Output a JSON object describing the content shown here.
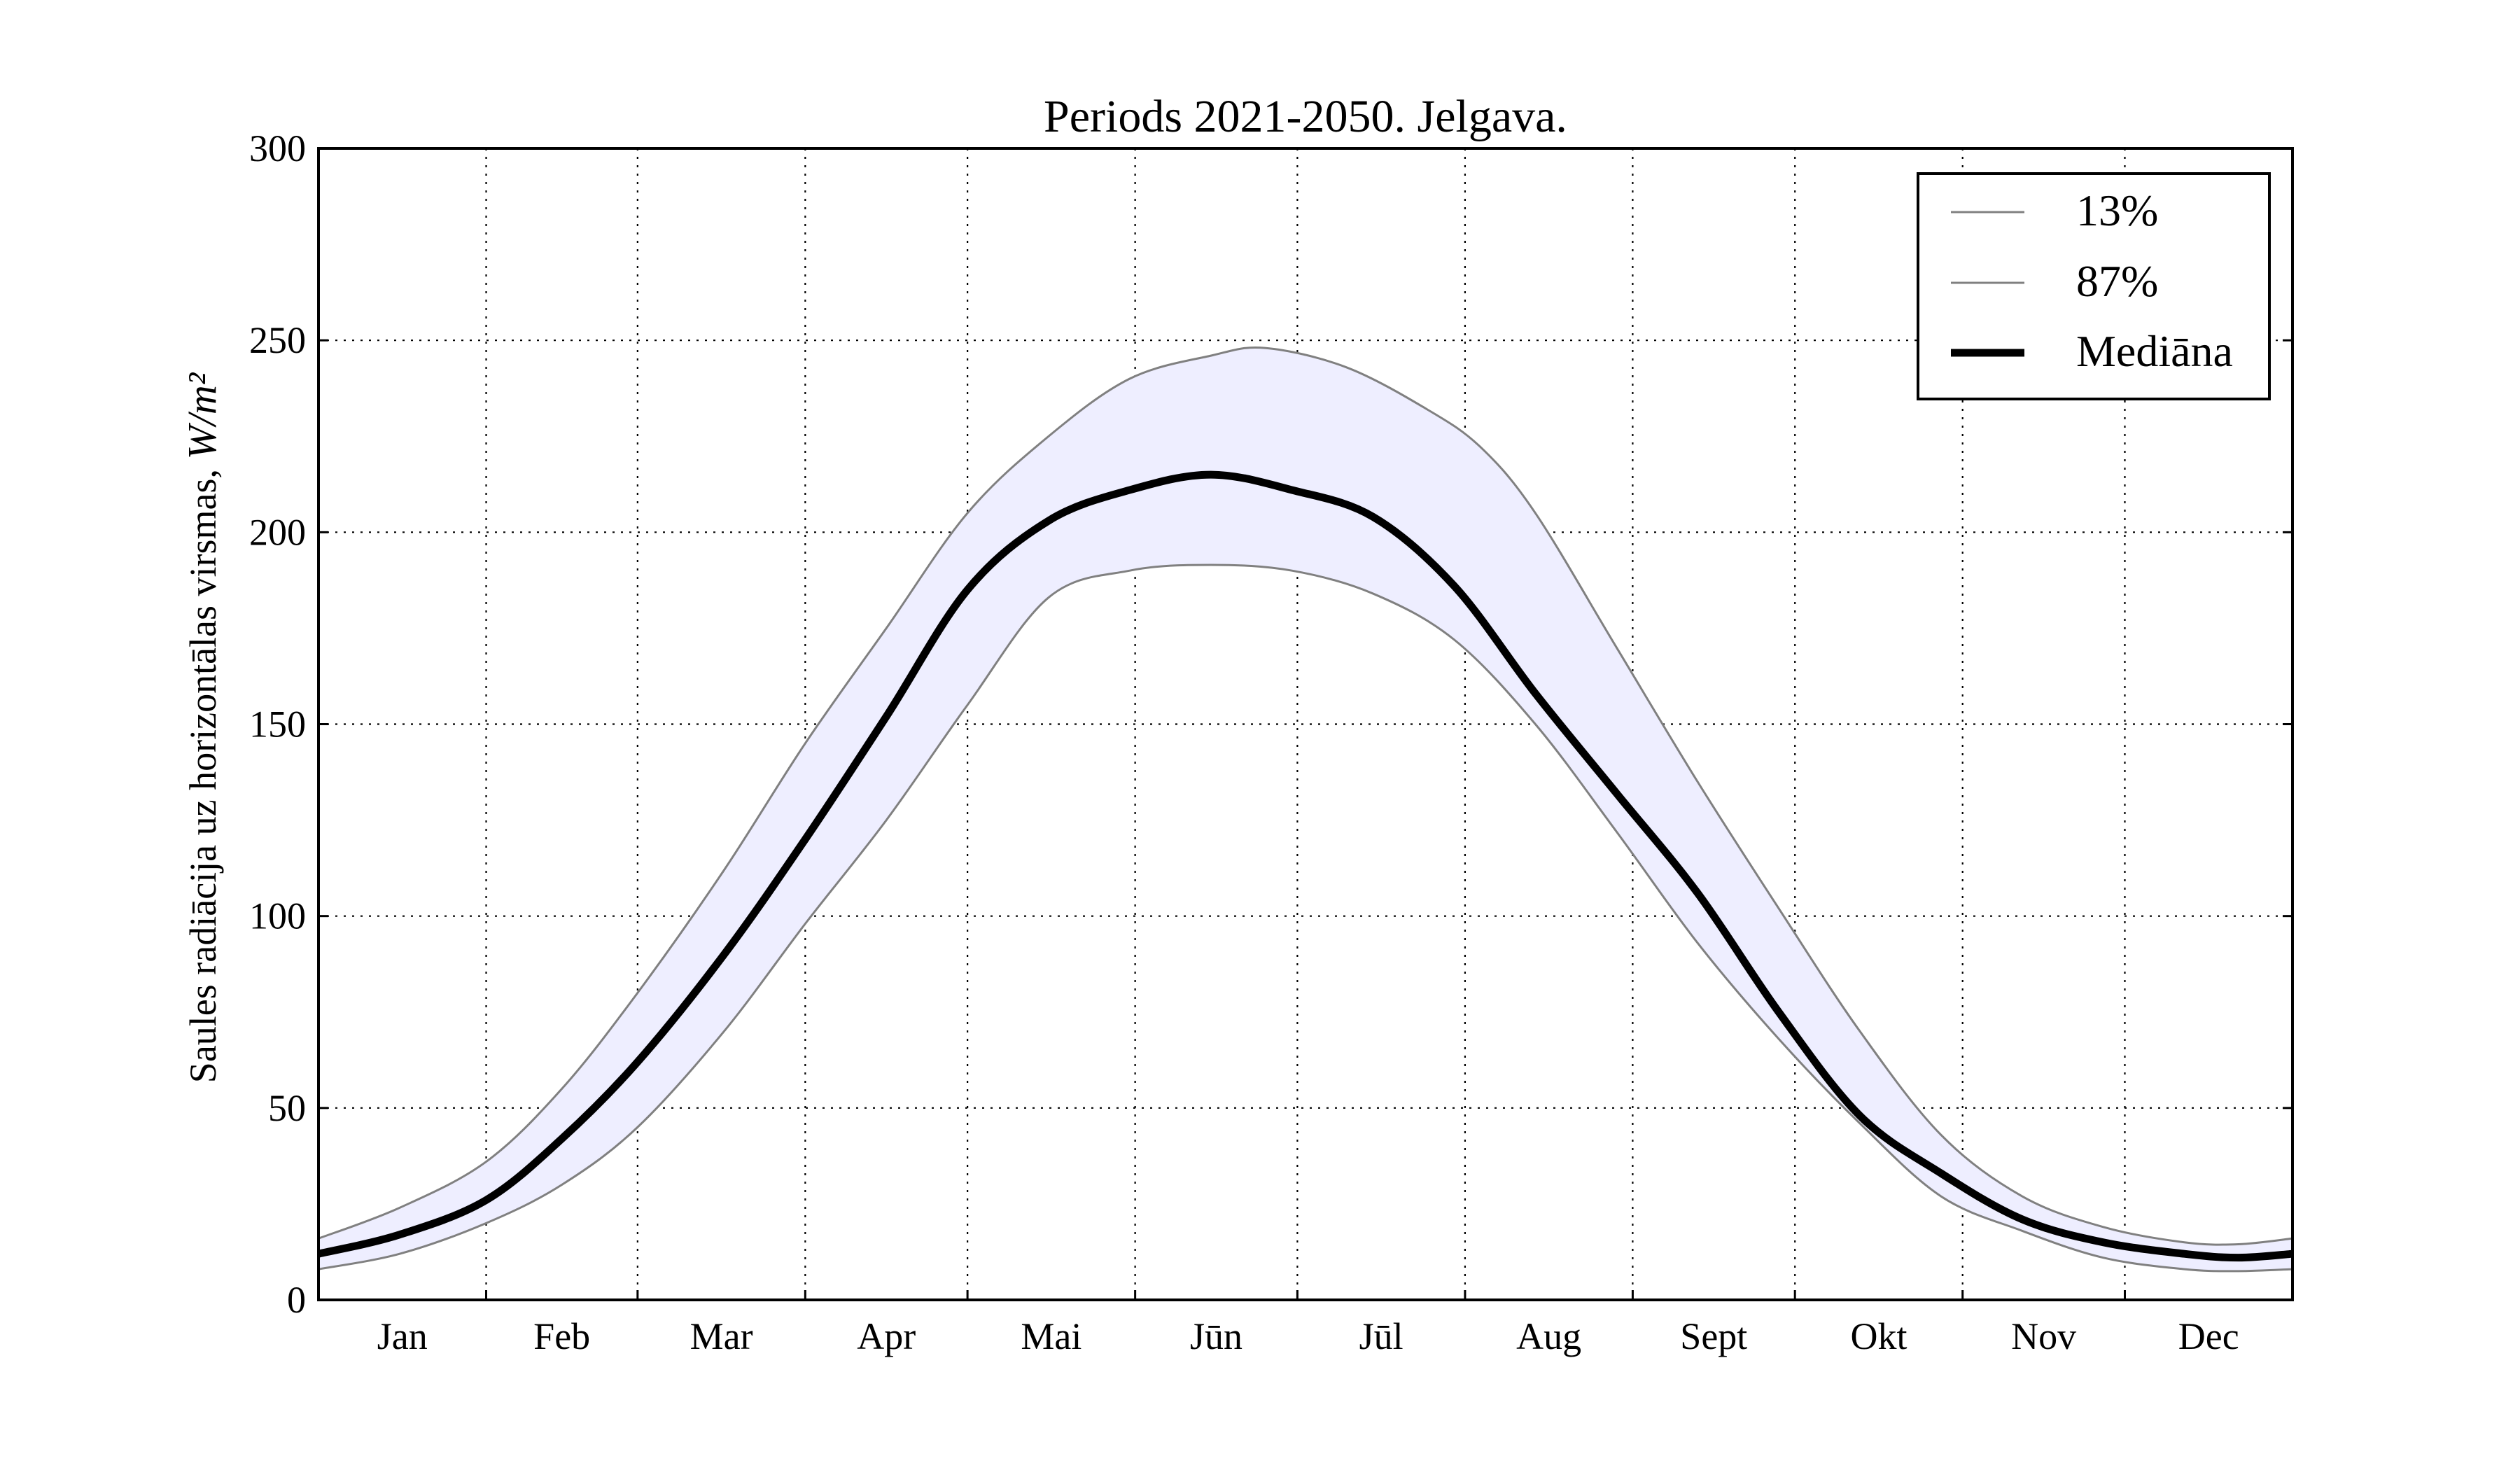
{
  "chart_data": {
    "type": "line",
    "title": "Periods 2021-2050. Jelgava.",
    "ylabel": "Saules radiācija uz horizontālas virsmas, ",
    "ylabel_unit": "W/m²",
    "xlabel": "",
    "xlim": [
      0,
      365
    ],
    "ylim": [
      0,
      300
    ],
    "yticks": [
      "0",
      "50",
      "100",
      "150",
      "200",
      "250",
      "300"
    ],
    "month_labels": [
      "Jan",
      "Feb",
      "Mar",
      "Apr",
      "Mai",
      "Jūn",
      "Jūl",
      "Aug",
      "Sept",
      "Okt",
      "Nov",
      "Dec"
    ],
    "grid": true,
    "legend_position": "top-right",
    "band_fill_color": "#eeeeff",
    "series": [
      {
        "name": "13%",
        "color": "#808080",
        "x": [
          0,
          15,
          31,
          45,
          59,
          75,
          90,
          105,
          120,
          135,
          150,
          165,
          180,
          195,
          210,
          225,
          240,
          255,
          270,
          285,
          300,
          315,
          330,
          345,
          355,
          365
        ],
        "y": [
          8,
          12,
          20,
          30,
          45,
          70,
          98,
          125,
          155,
          183,
          190,
          191.5,
          190,
          184,
          172,
          150,
          122,
          93,
          68,
          46,
          27,
          18,
          11,
          8,
          7.5,
          8
        ]
      },
      {
        "name": "87%",
        "color": "#808080",
        "x": [
          0,
          15,
          31,
          45,
          59,
          75,
          90,
          105,
          120,
          135,
          150,
          165,
          175,
          190,
          205,
          215,
          225,
          240,
          255,
          270,
          285,
          300,
          315,
          330,
          345,
          355,
          365
        ],
        "y": [
          16,
          24,
          36,
          55,
          80,
          112,
          145,
          175,
          205,
          225,
          240,
          246,
          248,
          243,
          232,
          222,
          205,
          170,
          135,
          102,
          70,
          43,
          27,
          19,
          15,
          14.5,
          16
        ]
      },
      {
        "name": "Mediāna",
        "color": "#000000",
        "x": [
          0,
          15,
          31,
          45,
          59,
          75,
          90,
          105,
          120,
          135,
          150,
          165,
          180,
          195,
          210,
          225,
          240,
          255,
          270,
          285,
          300,
          315,
          330,
          345,
          355,
          365
        ],
        "y": [
          12,
          17,
          26,
          42,
          62,
          90,
          120,
          152,
          185,
          203,
          211,
          215,
          211,
          204,
          186,
          158,
          132,
          106,
          75,
          48,
          33,
          21,
          15,
          12,
          11,
          12
        ]
      }
    ]
  }
}
